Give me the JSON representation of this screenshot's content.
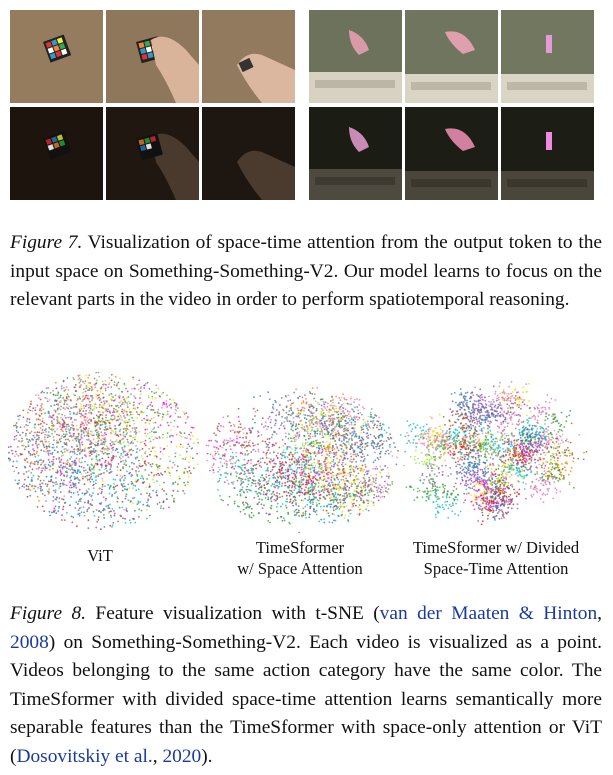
{
  "figure7": {
    "label": "Figure 7.",
    "text": " Visualization of space-time attention from the output token to the input space on Something-Something-V2. Our model learns to focus on the relevant parts in the video in order to perform spatiotemporal reasoning."
  },
  "tsne": {
    "panels": [
      {
        "label_line1": "ViT",
        "label_line2": ""
      },
      {
        "label_line1": "TimeSformer",
        "label_line2": "w/ Space Attention"
      },
      {
        "label_line1": "TimeSformer w/ Divided",
        "label_line2": "Space-Time Attention"
      }
    ]
  },
  "figure8": {
    "label": "Figure 8.",
    "text_a": " Feature visualization with t-SNE (",
    "cite1": "van der Maaten & Hinton",
    "text_b": ", ",
    "cite1_year": "2008",
    "text_c": ") on Something-Something-V2. Each video is visualized as a point. Videos belonging to the same action category have the same color. The TimeSformer with divided space-time attention learns semantically more separable features than the TimeSformer with space-only attention or ViT (",
    "cite2": "Dosovitskiy et al.",
    "text_d": ", ",
    "cite2_year": "2020",
    "text_e": ")."
  },
  "colors": {
    "citation": "#1a3a9e",
    "carpet": "#8a7257",
    "table": "#6f7560",
    "attention_dark": "#1a130d"
  }
}
